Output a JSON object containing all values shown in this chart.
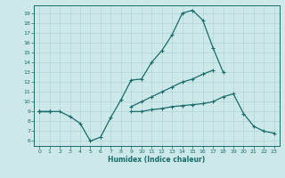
{
  "xlabel": "Humidex (Indice chaleur)",
  "bg_color": "#cce8e8",
  "grid_color": "#b0d4d4",
  "line_color": "#1a6b6b",
  "xlim": [
    -0.5,
    23.5
  ],
  "ylim": [
    5.5,
    19.8
  ],
  "xticks": [
    0,
    1,
    2,
    3,
    4,
    5,
    6,
    7,
    8,
    9,
    10,
    11,
    12,
    13,
    14,
    15,
    16,
    17,
    18,
    19,
    20,
    21,
    22,
    23
  ],
  "yticks": [
    6,
    7,
    8,
    9,
    10,
    11,
    12,
    13,
    14,
    15,
    16,
    17,
    18,
    19
  ],
  "line1_y": [
    9.0,
    9.0,
    9.0,
    8.5,
    7.8,
    6.0,
    6.4,
    8.4,
    10.2,
    12.2,
    12.3,
    14.0,
    15.2,
    16.8,
    19.0,
    19.3,
    18.3,
    15.5,
    13.0,
    null,
    null,
    null,
    null,
    null
  ],
  "line2_y": [
    9.0,
    9.0,
    null,
    null,
    null,
    null,
    null,
    null,
    null,
    9.5,
    10.0,
    10.5,
    11.0,
    11.5,
    12.0,
    12.3,
    12.8,
    13.2,
    null,
    null,
    null,
    null,
    null,
    null
  ],
  "line3_y": [
    9.0,
    9.0,
    null,
    null,
    null,
    null,
    null,
    null,
    null,
    9.0,
    9.0,
    9.2,
    9.3,
    9.5,
    9.6,
    9.7,
    9.8,
    10.0,
    10.5,
    10.8,
    8.8,
    7.5,
    7.0,
    6.8
  ]
}
